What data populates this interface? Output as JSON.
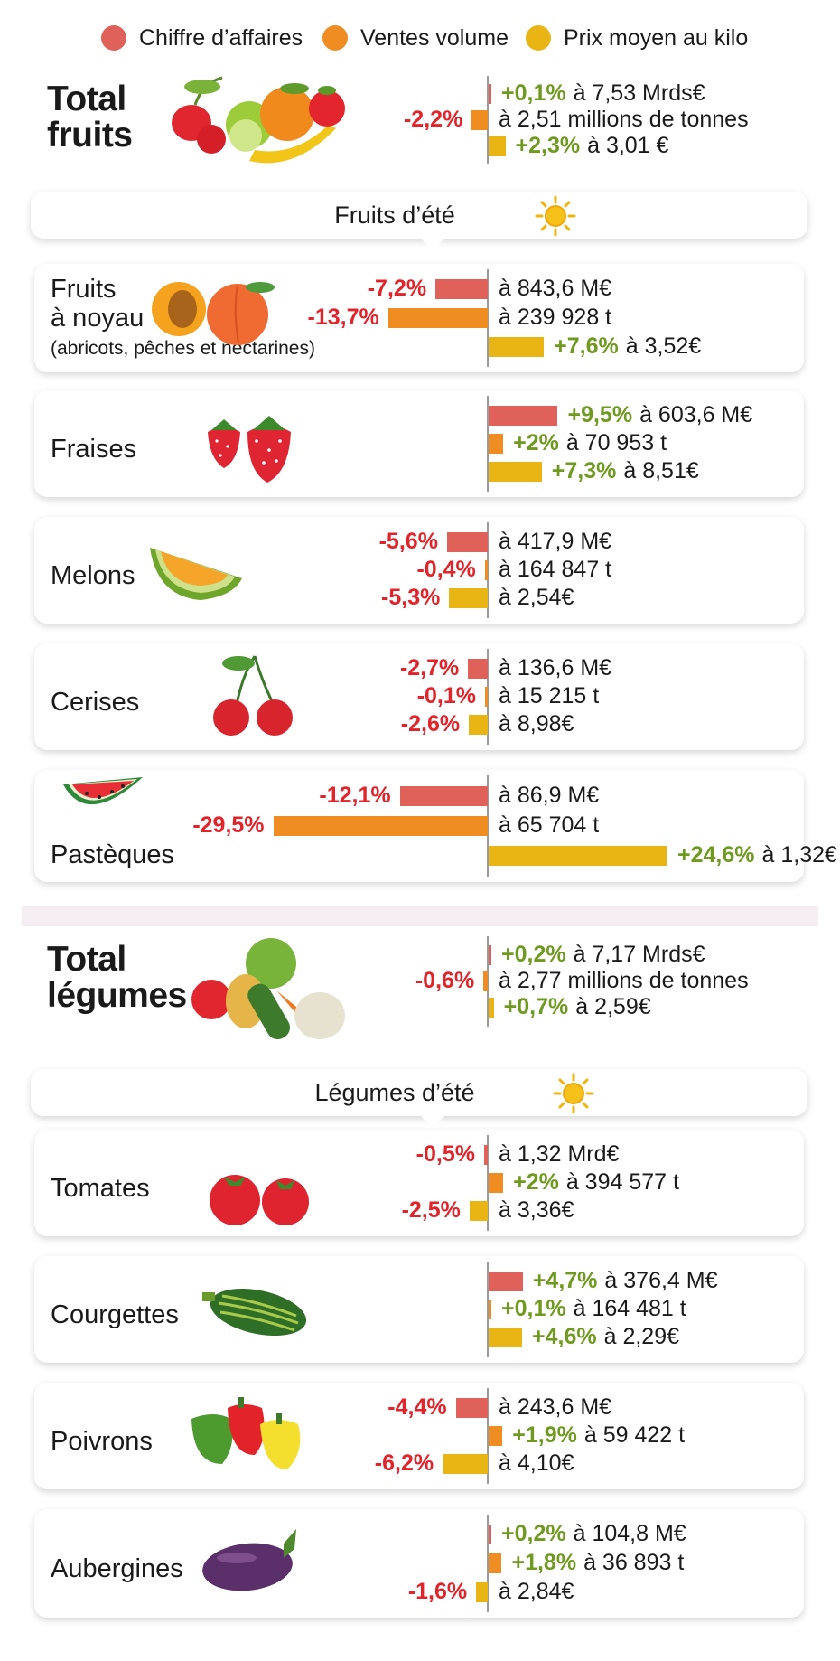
{
  "colors": {
    "ca": "#e0605a",
    "vol": "#ef8c22",
    "prix": "#e9b515",
    "neg": "#e2232a",
    "pos": "#6f9a1f"
  },
  "legend": [
    {
      "label": "Chiffre d’affaires",
      "color": "#e0605a"
    },
    {
      "label": "Ventes volume",
      "color": "#ef8c22"
    },
    {
      "label": "Prix moyen au kilo",
      "color": "#e9b515"
    }
  ],
  "sections": {
    "fruits": "Fruits d’été",
    "legumes": "Légumes d’été"
  },
  "chart_data": {
    "type": "bar",
    "series_names": [
      "Chiffre d’affaires",
      "Ventes volume",
      "Prix moyen au kilo"
    ],
    "rows": [
      {
        "name": "Total\nfruits",
        "total": true,
        "icon": "fruits-basket-icon",
        "bars": [
          {
            "pct": "+0,1%",
            "v": 0.1,
            "value": "à 7,53 Mrds€"
          },
          {
            "pct": "-2,2%",
            "v": -2.2,
            "value": "à 2,51 millions de tonnes"
          },
          {
            "pct": "+2,3%",
            "v": 2.3,
            "value": "à 3,01 €"
          }
        ]
      },
      {
        "name": "Fruits\nà noyau",
        "note": "(abricots, pêches et nectarines)",
        "icon": "apricot-peach-icon",
        "bars": [
          {
            "pct": "-7,2%",
            "v": -7.2,
            "value": "à 843,6 M€"
          },
          {
            "pct": "-13,7%",
            "v": -13.7,
            "value": "à 239 928 t"
          },
          {
            "pct": "+7,6%",
            "v": 7.6,
            "value": "à 3,52€"
          }
        ]
      },
      {
        "name": "Fraises",
        "icon": "strawberry-icon",
        "bars": [
          {
            "pct": "+9,5%",
            "v": 9.5,
            "value": "à 603,6 M€"
          },
          {
            "pct": "+2%",
            "v": 2,
            "value": "à 70 953 t"
          },
          {
            "pct": "+7,3%",
            "v": 7.3,
            "value": "à 8,51€"
          }
        ]
      },
      {
        "name": "Melons",
        "icon": "melon-icon",
        "bars": [
          {
            "pct": "-5,6%",
            "v": -5.6,
            "value": "à 417,9 M€"
          },
          {
            "pct": "-0,4%",
            "v": -0.4,
            "value": "à 164 847 t"
          },
          {
            "pct": "-5,3%",
            "v": -5.3,
            "value": "à 2,54€"
          }
        ]
      },
      {
        "name": "Cerises",
        "icon": "cherry-icon",
        "bars": [
          {
            "pct": "-2,7%",
            "v": -2.7,
            "value": "à 136,6 M€"
          },
          {
            "pct": "-0,1%",
            "v": -0.1,
            "value": "à 15 215 t"
          },
          {
            "pct": "-2,6%",
            "v": -2.6,
            "value": "à 8,98€"
          }
        ]
      },
      {
        "name": "Pastèques",
        "icon": "watermelon-icon",
        "bars": [
          {
            "pct": "-12,1%",
            "v": -12.1,
            "value": "à 86,9 M€"
          },
          {
            "pct": "-29,5%",
            "v": -29.5,
            "value": "à 65 704 t"
          },
          {
            "pct": "+24,6%",
            "v": 24.6,
            "value": "à 1,32€"
          }
        ]
      },
      {
        "name": "Total\nlégumes",
        "total": true,
        "icon": "vegetables-basket-icon",
        "bars": [
          {
            "pct": "+0,2%",
            "v": 0.2,
            "value": "à 7,17 Mrds€"
          },
          {
            "pct": "-0,6%",
            "v": -0.6,
            "value": "à 2,77 millions de tonnes"
          },
          {
            "pct": "+0,7%",
            "v": 0.7,
            "value": "à 2,59€"
          }
        ]
      },
      {
        "name": "Tomates",
        "icon": "tomato-icon",
        "bars": [
          {
            "pct": "-0,5%",
            "v": -0.5,
            "value": "à 1,32 Mrd€"
          },
          {
            "pct": "+2%",
            "v": 2,
            "value": "à 394 577 t"
          },
          {
            "pct": "-2,5%",
            "v": -2.5,
            "value": "à 3,36€"
          }
        ]
      },
      {
        "name": "Courgettes",
        "icon": "zucchini-icon",
        "bars": [
          {
            "pct": "+4,7%",
            "v": 4.7,
            "value": "à 376,4 M€"
          },
          {
            "pct": "+0,1%",
            "v": 0.1,
            "value": "à 164 481 t"
          },
          {
            "pct": "+4,6%",
            "v": 4.6,
            "value": "à 2,29€"
          }
        ]
      },
      {
        "name": "Poivrons",
        "icon": "pepper-icon",
        "bars": [
          {
            "pct": "-4,4%",
            "v": -4.4,
            "value": "à 243,6 M€"
          },
          {
            "pct": "+1,9%",
            "v": 1.9,
            "value": "à 59 422 t"
          },
          {
            "pct": "-6,2%",
            "v": -6.2,
            "value": "à 4,10€"
          }
        ]
      },
      {
        "name": "Aubergines",
        "icon": "eggplant-icon",
        "bars": [
          {
            "pct": "+0,2%",
            "v": 0.2,
            "value": "à 104,8 M€"
          },
          {
            "pct": "+1,8%",
            "v": 1.8,
            "value": "à 36 893 t"
          },
          {
            "pct": "-1,6%",
            "v": -1.6,
            "value": "à 2,84€"
          }
        ]
      }
    ]
  }
}
